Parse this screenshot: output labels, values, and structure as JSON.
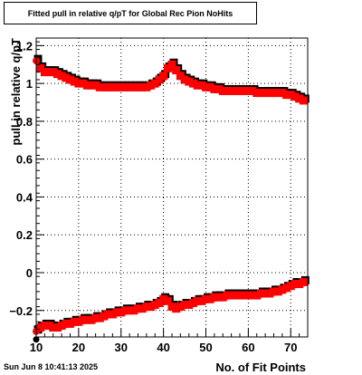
{
  "title": "Fitted pull in relative q/pT for Global Rec Pion NoHits",
  "footer_timestamp": "Sun Jun  8 10:41:13 2025",
  "chart_data": {
    "type": "scatter",
    "title": "Fitted pull in relative q/pT for Global Rec Pion NoHits",
    "xlabel": "No. of Fit Points",
    "ylabel": "pull in relative q/pT",
    "xlim": [
      10,
      74
    ],
    "ylim": [
      -0.34,
      1.24
    ],
    "xticks": [
      10,
      20,
      30,
      40,
      50,
      60,
      70
    ],
    "yticks": [
      -0.2,
      0,
      0.2,
      0.4,
      0.6,
      0.8,
      1,
      1.2
    ],
    "ytick_labels": [
      "−0.2",
      "0",
      "0.2",
      "0.4",
      "0.6",
      "0.8",
      "1",
      "1.2"
    ],
    "grid": true,
    "colors": {
      "series_sigma": "#ff0000",
      "series_mean": "#ff0000",
      "reference": "#000000",
      "axes": "#000000"
    },
    "series": [
      {
        "values_desc": "upper band (sigma)",
        "x": [
          10,
          11,
          12,
          13,
          14,
          15,
          16,
          17,
          18,
          19,
          20,
          21,
          22,
          23,
          24,
          25,
          26,
          27,
          28,
          29,
          30,
          31,
          32,
          33,
          34,
          35,
          36,
          37,
          38,
          39,
          40,
          41,
          42,
          43,
          44,
          45,
          46,
          47,
          48,
          49,
          50,
          51,
          52,
          53,
          54,
          55,
          56,
          57,
          58,
          59,
          60,
          61,
          62,
          63,
          64,
          65,
          66,
          67,
          68,
          69,
          70,
          71,
          72,
          73
        ],
        "y": [
          1.12,
          1.08,
          1.06,
          1.06,
          1.06,
          1.05,
          1.04,
          1.03,
          1.02,
          1.01,
          1.0,
          1.0,
          0.99,
          0.99,
          0.99,
          0.98,
          0.98,
          0.98,
          0.98,
          0.98,
          0.98,
          0.98,
          0.98,
          0.98,
          0.98,
          0.98,
          0.98,
          0.99,
          1.0,
          1.02,
          1.04,
          1.08,
          1.1,
          1.07,
          1.04,
          1.02,
          1.01,
          1.0,
          0.99,
          0.99,
          0.98,
          0.98,
          0.97,
          0.97,
          0.96,
          0.96,
          0.96,
          0.96,
          0.96,
          0.96,
          0.96,
          0.96,
          0.95,
          0.95,
          0.95,
          0.95,
          0.95,
          0.95,
          0.95,
          0.94,
          0.94,
          0.93,
          0.92,
          0.91
        ]
      },
      {
        "values_desc": "lower band (mean)",
        "x": [
          10,
          11,
          12,
          13,
          14,
          15,
          16,
          17,
          18,
          19,
          20,
          21,
          22,
          23,
          24,
          25,
          26,
          27,
          28,
          29,
          30,
          31,
          32,
          33,
          34,
          35,
          36,
          37,
          38,
          39,
          40,
          41,
          42,
          43,
          44,
          45,
          46,
          47,
          48,
          49,
          50,
          51,
          52,
          53,
          54,
          55,
          56,
          57,
          58,
          59,
          60,
          61,
          62,
          63,
          64,
          65,
          66,
          67,
          68,
          69,
          70,
          71,
          72,
          73
        ],
        "y": [
          -0.31,
          -0.29,
          -0.28,
          -0.28,
          -0.29,
          -0.29,
          -0.28,
          -0.27,
          -0.27,
          -0.26,
          -0.26,
          -0.25,
          -0.25,
          -0.25,
          -0.24,
          -0.24,
          -0.23,
          -0.22,
          -0.22,
          -0.21,
          -0.21,
          -0.2,
          -0.2,
          -0.2,
          -0.19,
          -0.19,
          -0.18,
          -0.18,
          -0.17,
          -0.16,
          -0.14,
          -0.15,
          -0.18,
          -0.19,
          -0.18,
          -0.17,
          -0.17,
          -0.16,
          -0.15,
          -0.15,
          -0.14,
          -0.14,
          -0.13,
          -0.13,
          -0.13,
          -0.12,
          -0.12,
          -0.12,
          -0.12,
          -0.12,
          -0.12,
          -0.12,
          -0.12,
          -0.11,
          -0.11,
          -0.11,
          -0.1,
          -0.1,
          -0.09,
          -0.08,
          -0.07,
          -0.06,
          -0.06,
          -0.05
        ]
      }
    ]
  }
}
